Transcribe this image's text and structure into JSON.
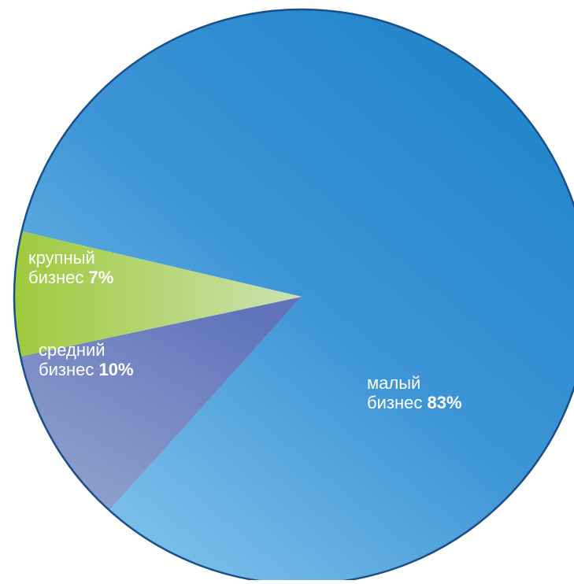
{
  "chart_data": {
    "type": "pie",
    "title": "",
    "slices": [
      {
        "line1": "малый",
        "line2": "бизнес",
        "value": 83,
        "value_label": "83%",
        "color": "#2487cb"
      },
      {
        "line1": "средний",
        "line2": "бизнес",
        "value": 10,
        "value_label": "10%",
        "color": "#6c7fbd"
      },
      {
        "line1": "крупный",
        "line2": "бизнес",
        "value": 7,
        "value_label": "7%",
        "color": "#a8cf4a"
      }
    ]
  }
}
